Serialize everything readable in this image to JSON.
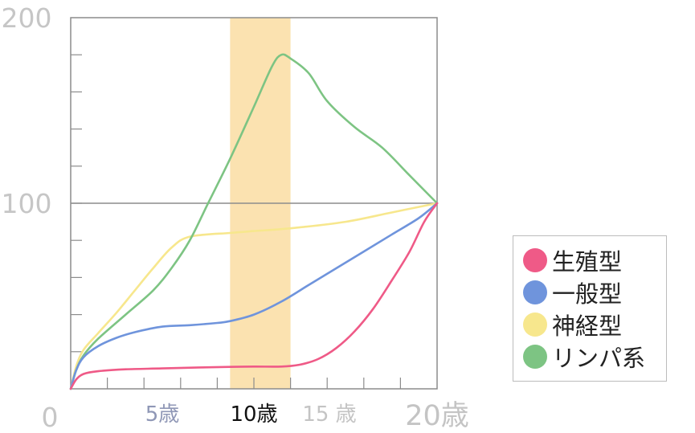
{
  "chart_data": {
    "type": "line",
    "title": "",
    "xlabel": "",
    "ylabel": "",
    "xlim": [
      0,
      20
    ],
    "ylim": [
      0,
      200
    ],
    "y_ticks": [
      {
        "value": 0,
        "label": "0"
      },
      {
        "value": 100,
        "label": "100"
      },
      {
        "value": 200,
        "label": "200"
      }
    ],
    "y_minor_step": 20,
    "x_ticks": [
      {
        "value": 5,
        "label": "5歳",
        "color": "#8f97b6"
      },
      {
        "value": 10,
        "label": "10歳",
        "color": "#111111"
      },
      {
        "value": 15,
        "label": "15 歳",
        "color": "#c4c4c4"
      },
      {
        "value": 20,
        "label": "20歳",
        "color": "#c4c4c4"
      }
    ],
    "x_minor_step": 2,
    "reference_line_y": 100,
    "highlight_band": {
      "x_start": 8.7,
      "x_end": 12.0,
      "color": "#fbe2b0"
    },
    "grid": false,
    "legend_position": "right",
    "series": [
      {
        "name": "生殖型",
        "color": "#ef5a87",
        "x": [
          0,
          0.3,
          0.7,
          1.5,
          3,
          5,
          7,
          8.7,
          10,
          11.5,
          12.5,
          13.5,
          14.5,
          15.5,
          16.5,
          17.5,
          18.5,
          19.3,
          20
        ],
        "y": [
          0,
          5,
          8,
          9.5,
          10.5,
          11,
          11.5,
          11.8,
          12,
          12,
          13,
          16,
          22,
          31,
          43,
          58,
          74,
          90,
          100
        ]
      },
      {
        "name": "一般型",
        "color": "#6f94dc",
        "x": [
          0,
          0.3,
          0.7,
          1.5,
          2.5,
          3.5,
          5,
          6.5,
          8,
          8.7,
          10,
          11.5,
          13,
          14.5,
          16,
          17.5,
          19,
          20
        ],
        "y": [
          0,
          10,
          17,
          23,
          27.5,
          30.5,
          33.5,
          34.3,
          35.5,
          36.5,
          40,
          47,
          56,
          65,
          74,
          83,
          92,
          100
        ]
      },
      {
        "name": "神経型",
        "color": "#f7e78d",
        "x": [
          0,
          0.3,
          0.7,
          1.5,
          2.5,
          3.5,
          4.5,
          5.5,
          6.5,
          8.7,
          10,
          12,
          15,
          17.5,
          20
        ],
        "y": [
          0,
          12,
          21,
          30,
          41,
          53,
          65,
          76,
          82,
          84,
          85,
          86.5,
          90,
          95,
          100
        ]
      },
      {
        "name": "リンパ系",
        "color": "#7dc483",
        "x": [
          0,
          0.3,
          0.7,
          1.5,
          3,
          4.5,
          5.5,
          6.5,
          7.5,
          8.7,
          10,
          11,
          11.5,
          12,
          13,
          14,
          15.5,
          17,
          18.5,
          20
        ],
        "y": [
          0,
          10,
          18,
          27,
          40,
          53,
          65,
          80,
          100,
          124,
          152,
          174,
          180,
          178,
          170,
          155,
          141,
          130,
          115,
          100
        ]
      }
    ]
  }
}
